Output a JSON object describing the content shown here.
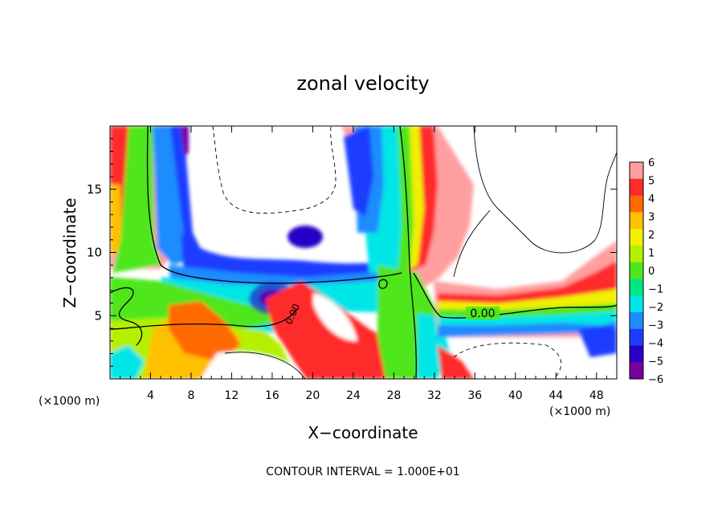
{
  "chart_data": {
    "type": "heatmap",
    "title": "zonal velocity",
    "xlabel": "X−coordinate",
    "ylabel": "Z−coordinate",
    "x_unit_left": "(×1000 m)",
    "x_unit_right": "(×1000 m)",
    "footer": "CONTOUR INTERVAL = 1.000E+01",
    "contour_label": "0.00",
    "xlim": [
      0,
      50
    ],
    "ylim": [
      0,
      20
    ],
    "x_ticks": [
      4,
      8,
      12,
      16,
      20,
      24,
      28,
      32,
      36,
      40,
      44,
      48
    ],
    "y_ticks": [
      5,
      10,
      15
    ],
    "colorbar": {
      "levels": [
        "6",
        "5",
        "4",
        "3",
        "2",
        "1",
        "0",
        "−1",
        "−2",
        "−3",
        "−4",
        "−5",
        "−6"
      ],
      "colors": [
        "#ff9f9f",
        "#ff2a2a",
        "#ff6a00",
        "#ffc000",
        "#f0f000",
        "#b4f000",
        "#50e61e",
        "#00e682",
        "#00e6e6",
        "#1e8cff",
        "#1e3cff",
        "#2800c8",
        "#7800a0"
      ],
      "range": [
        -6,
        6
      ]
    }
  }
}
